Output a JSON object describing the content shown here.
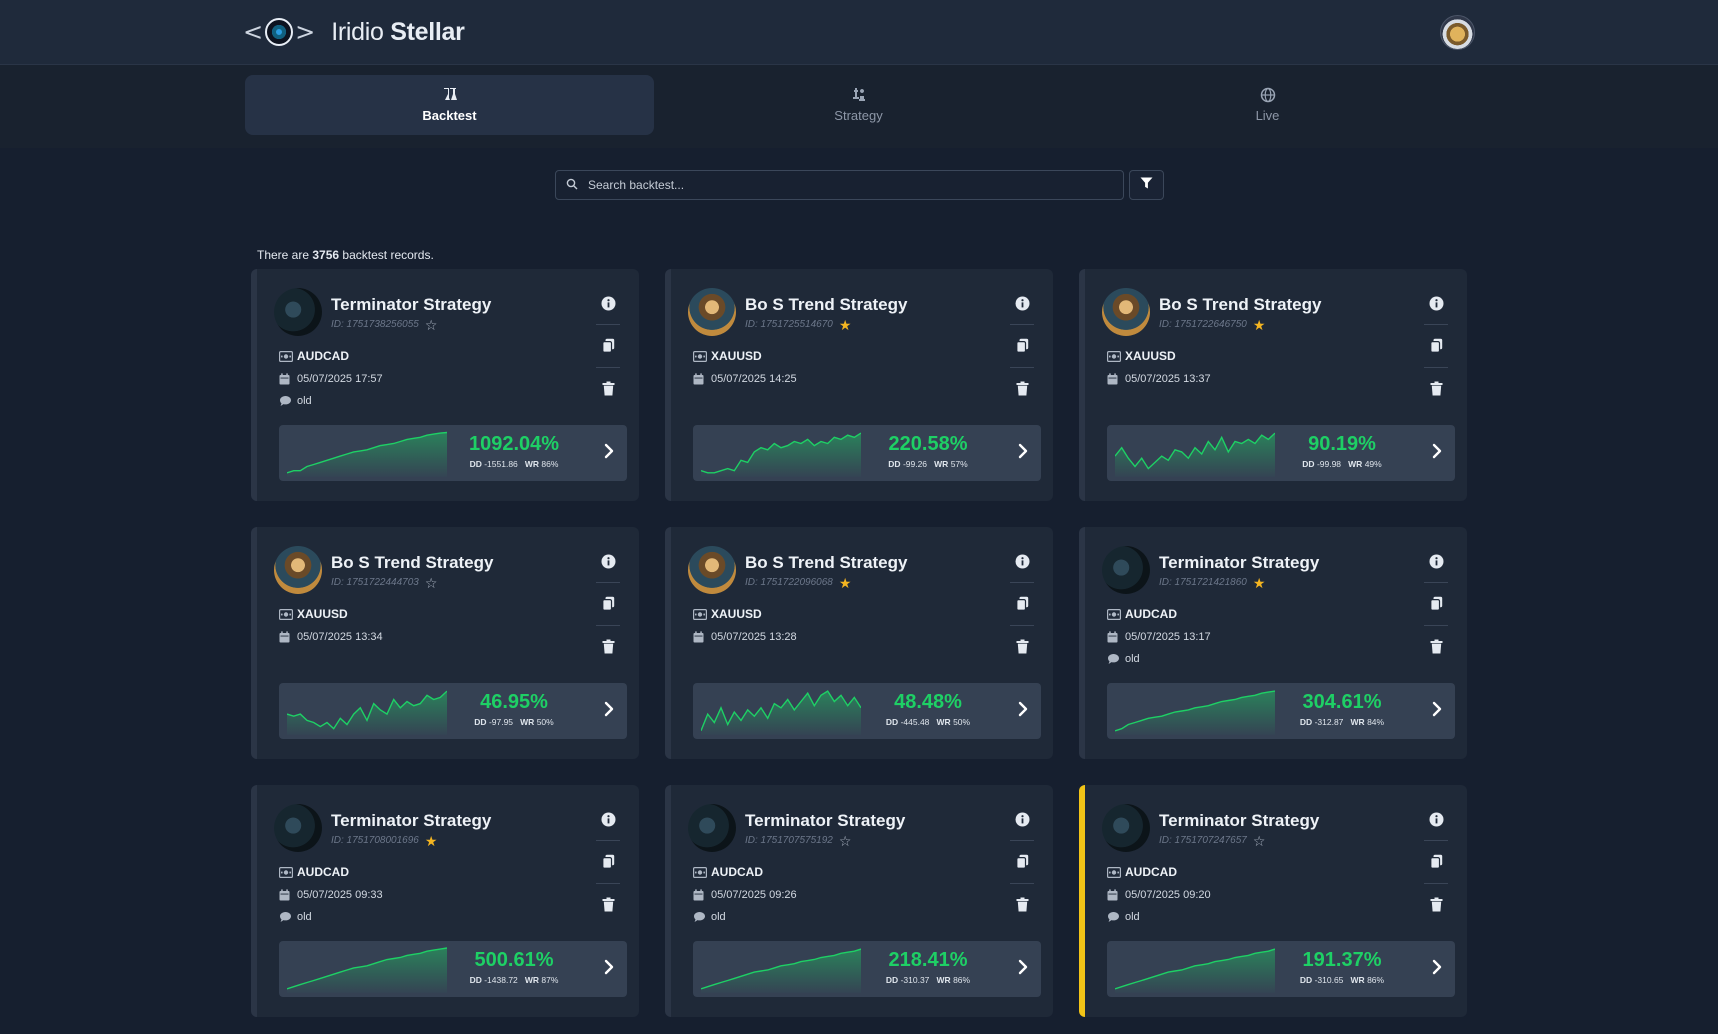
{
  "header": {
    "logo_brackets_left": "<",
    "logo_brackets_right": ">",
    "app_name_light": "Iridio",
    "app_name_bold": "Stellar"
  },
  "tabs": [
    {
      "label": "Backtest",
      "icon": "flask-icon",
      "active": true
    },
    {
      "label": "Strategy",
      "icon": "chess-icon",
      "active": false
    },
    {
      "label": "Live",
      "icon": "globe-icon",
      "active": false
    }
  ],
  "search": {
    "placeholder": "Search backtest...",
    "value": ""
  },
  "records": {
    "prefix": "There are",
    "count": "3756",
    "suffix": "backtest records."
  },
  "colors": {
    "accent_green": "#1ed065",
    "star": "#f4b521",
    "highlight": "#f2c417",
    "background": "#161f2f",
    "card": "#1f2938"
  },
  "cards": [
    {
      "title": "Terminator Strategy",
      "id": "ID: 1751738256055",
      "starred": false,
      "symbol": "AUDCAD",
      "date": "05/07/2025 17:57",
      "note": "old",
      "pct": "1092.04%",
      "dd": "-1551.86",
      "wr": "86%",
      "avatar": "term",
      "highlight": false,
      "spark": [
        2,
        3,
        3,
        5,
        6,
        7,
        8,
        9,
        10,
        11,
        12,
        12.5,
        13,
        14,
        15,
        15.5,
        16,
        17,
        18,
        18.5,
        19,
        20,
        20.5,
        21,
        21.3
      ]
    },
    {
      "title": "Bo S Trend Strategy",
      "id": "ID: 1751725514670",
      "starred": true,
      "symbol": "XAUUSD",
      "date": "05/07/2025 14:25",
      "note": "",
      "pct": "220.58%",
      "dd": "-99.26",
      "wr": "57%",
      "avatar": "bos",
      "highlight": false,
      "spark": [
        3,
        2,
        2,
        3,
        4,
        3,
        8,
        7,
        12,
        14,
        13,
        16,
        14,
        15,
        17,
        16,
        18,
        15,
        17,
        16,
        19,
        18,
        20,
        19,
        21
      ]
    },
    {
      "title": "Bo S Trend Strategy",
      "id": "ID: 1751722646750",
      "starred": true,
      "symbol": "XAUUSD",
      "date": "05/07/2025 13:37",
      "note": "",
      "pct": "90.19%",
      "dd": "-99.98",
      "wr": "49%",
      "avatar": "bos",
      "highlight": false,
      "spark": [
        10,
        14,
        9,
        5,
        9,
        4,
        7,
        10,
        8,
        13,
        12,
        9,
        14,
        11,
        17,
        13,
        19,
        12,
        17,
        16,
        18,
        16,
        20,
        18,
        21
      ]
    },
    {
      "title": "Bo S Trend Strategy",
      "id": "ID: 1751722444703",
      "starred": false,
      "symbol": "XAUUSD",
      "date": "05/07/2025 13:34",
      "note": "",
      "pct": "46.95%",
      "dd": "-97.95",
      "wr": "50%",
      "avatar": "bos",
      "highlight": false,
      "spark": [
        10,
        9,
        10,
        7,
        6,
        4,
        6,
        3,
        8,
        5,
        10,
        13,
        7,
        15,
        12,
        10,
        17,
        13,
        16,
        14,
        15,
        19,
        17,
        18,
        21
      ]
    },
    {
      "title": "Bo S Trend Strategy",
      "id": "ID: 1751722096068",
      "starred": true,
      "symbol": "XAUUSD",
      "date": "05/07/2025 13:28",
      "note": "",
      "pct": "48.48%",
      "dd": "-445.48",
      "wr": "50%",
      "avatar": "bos",
      "highlight": false,
      "spark": [
        2,
        10,
        6,
        13,
        5,
        11,
        7,
        12,
        9,
        13,
        8,
        15,
        13,
        17,
        12,
        16,
        20,
        14,
        19,
        21,
        16,
        19,
        14,
        18,
        13
      ]
    },
    {
      "title": "Terminator Strategy",
      "id": "ID: 1751721421860",
      "starred": true,
      "symbol": "AUDCAD",
      "date": "05/07/2025 13:17",
      "note": "old",
      "pct": "304.61%",
      "dd": "-312.87",
      "wr": "84%",
      "avatar": "term",
      "highlight": false,
      "spark": [
        2,
        3,
        5,
        6,
        7,
        8,
        8.5,
        9,
        10,
        11,
        11.5,
        12,
        13,
        13.5,
        14,
        15,
        16,
        16.5,
        17,
        18,
        18.5,
        19,
        20,
        20.5,
        21
      ]
    },
    {
      "title": "Terminator Strategy",
      "id": "ID: 1751708001696",
      "starred": true,
      "symbol": "AUDCAD",
      "date": "05/07/2025 09:33",
      "note": "old",
      "pct": "500.61%",
      "dd": "-1438.72",
      "wr": "87%",
      "avatar": "term",
      "highlight": false,
      "spark": [
        2,
        3,
        4,
        5,
        6,
        7,
        8,
        9,
        10,
        11,
        12,
        12.5,
        13,
        14,
        15,
        16,
        16.5,
        17,
        18,
        18.5,
        19,
        20,
        20.5,
        21,
        21.5
      ]
    },
    {
      "title": "Terminator Strategy",
      "id": "ID: 1751707575192",
      "starred": false,
      "symbol": "AUDCAD",
      "date": "05/07/2025 09:26",
      "note": "old",
      "pct": "218.41%",
      "dd": "-310.37",
      "wr": "86%",
      "avatar": "term",
      "highlight": false,
      "spark": [
        2,
        3,
        4,
        5,
        6,
        7,
        8,
        9,
        10,
        10.5,
        11,
        12,
        13,
        13.5,
        14,
        15,
        15.5,
        16,
        17,
        17.5,
        18,
        19,
        19.5,
        20,
        21
      ]
    },
    {
      "title": "Terminator Strategy",
      "id": "ID: 1751707247657",
      "starred": false,
      "symbol": "AUDCAD",
      "date": "05/07/2025 09:20",
      "note": "old",
      "pct": "191.37%",
      "dd": "-310.65",
      "wr": "86%",
      "avatar": "term",
      "highlight": true,
      "spark": [
        2,
        3,
        4,
        5,
        6,
        7,
        8,
        9,
        10,
        10.5,
        11,
        12,
        13,
        13.5,
        14,
        15,
        15.5,
        16,
        17,
        17.5,
        18,
        19,
        19.5,
        20,
        21
      ]
    }
  ]
}
